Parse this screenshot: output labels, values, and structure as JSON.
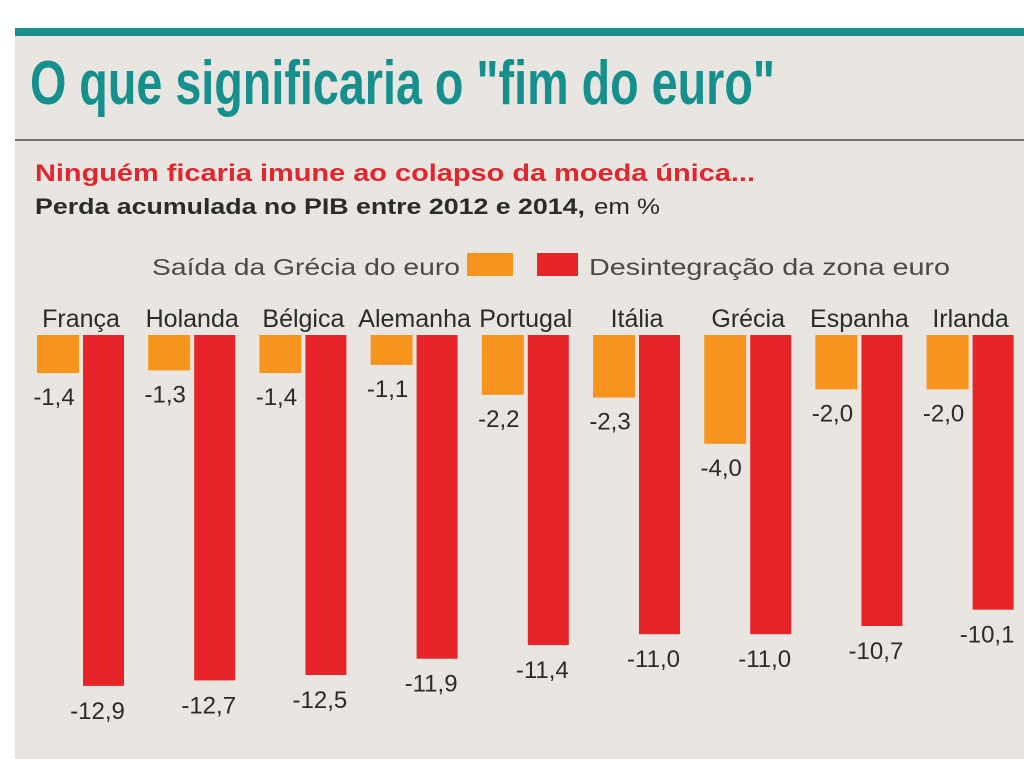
{
  "header": {
    "title": "O que significaria o \"fim do euro\""
  },
  "theme": {
    "accent": "#16908d",
    "highlight": "#e1262d"
  },
  "chart_data": {
    "type": "bar",
    "title": "Ninguém ficaria imune ao colapso da moeda única...",
    "description": {
      "bold": "Perda acumulada no PIB entre 2012 e 2014,",
      "unit": "em %"
    },
    "categories": [
      "França",
      "Holanda",
      "Bélgica",
      "Alemanha",
      "Portugal",
      "Itália",
      "Grécia",
      "Espanha",
      "Irlanda"
    ],
    "series": [
      {
        "name": "Saída da Grécia do euro",
        "color": "#f7941d",
        "values": [
          -1.4,
          -1.3,
          -1.4,
          -1.1,
          -2.2,
          -2.3,
          -4.0,
          -2.0,
          -2.0
        ],
        "labels": [
          "-1,4",
          "-1,3",
          "-1,4",
          "-1,1",
          "-2,2",
          "-2,3",
          "-4,0",
          "-2,0",
          "-2,0"
        ]
      },
      {
        "name": "Desintegração da zona euro",
        "color": "#e8242b",
        "values": [
          -12.9,
          -12.7,
          -12.5,
          -11.9,
          -11.4,
          -11.0,
          -11.0,
          -10.7,
          -10.1
        ],
        "labels": [
          "-12,9",
          "-12,7",
          "-12,5",
          "-11,9",
          "-11,4",
          "-11,0",
          "-11,0",
          "-10,7",
          "-10,1"
        ]
      }
    ],
    "ylim": [
      -13,
      0
    ],
    "grid": false,
    "legend_position": "top"
  }
}
